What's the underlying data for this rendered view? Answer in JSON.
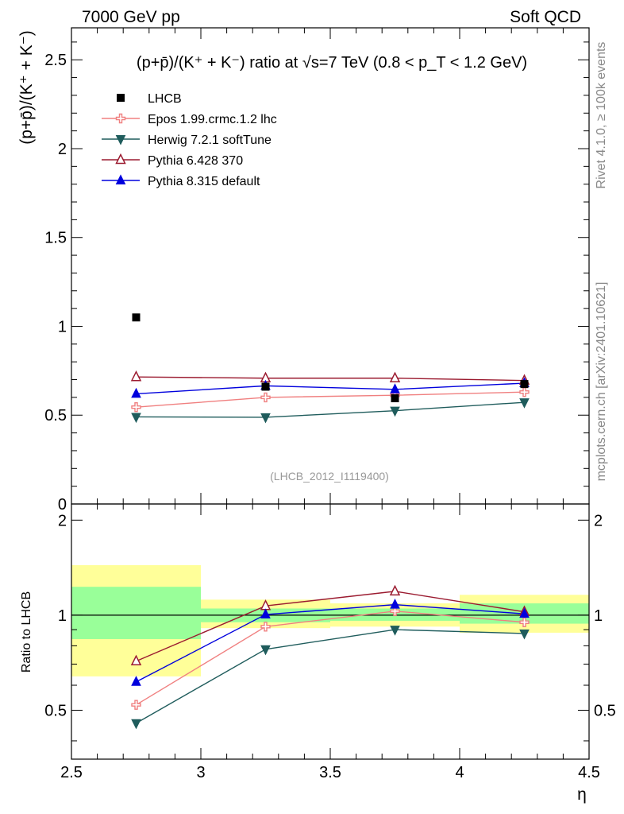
{
  "header": {
    "left": "7000 GeV pp",
    "right": "Soft QCD"
  },
  "side_labels": {
    "rivet": "Rivet 4.1.0, ≥ 100k events",
    "mcplots": "mcplots.cern.ch [arXiv:2401.10621]"
  },
  "chart_data": {
    "type": "line",
    "title": "(p+p̄)/(K⁺ + K⁻) ratio at √s=7 TeV (0.8 < p_T < 1.2 GeV)",
    "analysis_id": "(LHCB_2012_I1119400)",
    "xlabel": "η",
    "ylabel": "(p+p̄)/(K⁺ + K⁻)",
    "ratio_ylabel": "Ratio to LHCB",
    "xlim": [
      2.5,
      4.5
    ],
    "ylim": [
      0,
      2.68
    ],
    "ratio_ylim": [
      0.35,
      2.25
    ],
    "x_ticks": [
      2.5,
      3,
      3.5,
      4,
      4.5
    ],
    "x_tick_labels": [
      "2.5",
      "3",
      "3.5",
      "4",
      "4.5"
    ],
    "y_ticks": [
      0,
      0.5,
      1,
      1.5,
      2,
      2.5
    ],
    "y_tick_labels": [
      "0",
      "0.5",
      "1",
      "1.5",
      "2",
      "2.5"
    ],
    "ratio_y_ticks": [
      0.5,
      1,
      2
    ],
    "ratio_y_tick_labels": [
      "0.5",
      "1",
      "2"
    ],
    "x": [
      2.75,
      3.25,
      3.75,
      4.25
    ],
    "bins": [
      [
        2.5,
        3.0
      ],
      [
        3.0,
        3.5
      ],
      [
        3.5,
        4.0
      ],
      [
        4.0,
        4.5
      ]
    ],
    "data": {
      "name": "LHCB",
      "color": "#000000",
      "values": [
        1.05,
        0.66,
        0.595,
        0.675
      ],
      "band_inner": [
        [
          0.84,
          1.23
        ],
        [
          0.95,
          1.05
        ],
        [
          0.96,
          1.05
        ],
        [
          0.94,
          1.09
        ]
      ],
      "band_outer": [
        [
          0.64,
          1.44
        ],
        [
          0.91,
          1.12
        ],
        [
          0.92,
          1.09
        ],
        [
          0.88,
          1.16
        ]
      ]
    },
    "series": [
      {
        "name": "Epos 1.99.crmc.1.2 lhc",
        "color": "#f08080",
        "marker": "cross",
        "values": [
          0.545,
          0.6,
          0.612,
          0.63
        ],
        "ratio": [
          0.52,
          0.92,
          1.03,
          0.95
        ]
      },
      {
        "name": "Herwig 7.2.1 softTune",
        "color": "#1f5c5c",
        "marker": "triangle-down",
        "values": [
          0.49,
          0.488,
          0.525,
          0.572
        ],
        "ratio": [
          0.455,
          0.78,
          0.9,
          0.875
        ]
      },
      {
        "name": "Pythia 6.428 370",
        "color": "#9b1b30",
        "marker": "triangle-up-open",
        "values": [
          0.715,
          0.708,
          0.708,
          0.695
        ],
        "ratio": [
          0.715,
          1.07,
          1.19,
          1.025
        ]
      },
      {
        "name": "Pythia 8.315 default",
        "color": "#0000dd",
        "marker": "triangle-up",
        "values": [
          0.62,
          0.665,
          0.645,
          0.68
        ],
        "ratio": [
          0.615,
          1.005,
          1.08,
          1.01
        ]
      }
    ],
    "colors": {
      "band_inner": "#99ff99",
      "band_outer": "#ffff99"
    }
  }
}
